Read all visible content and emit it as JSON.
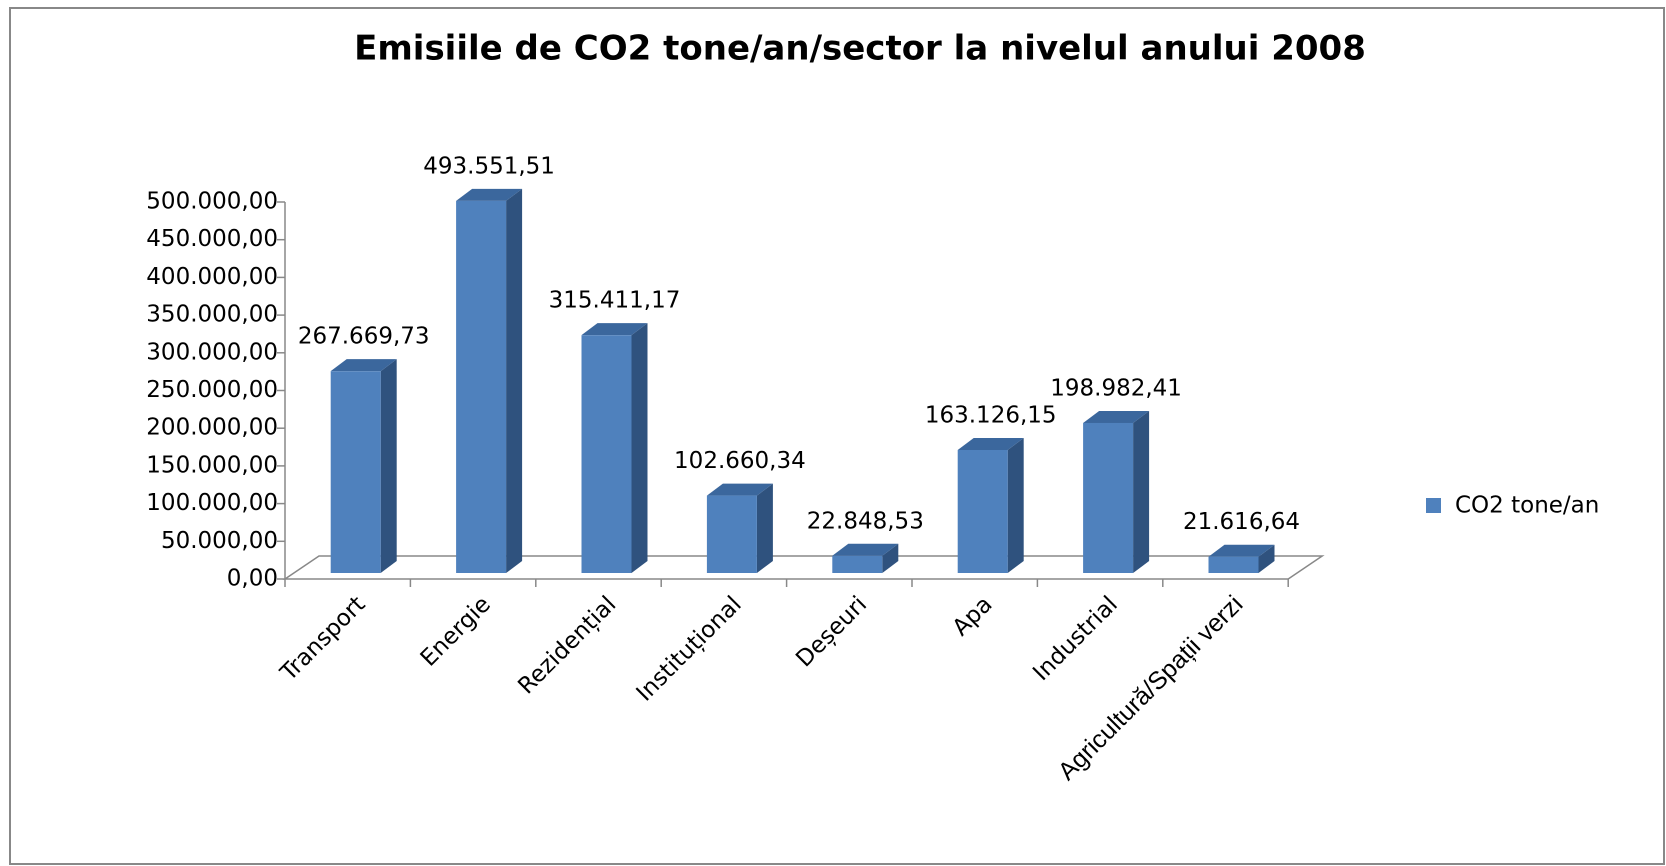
{
  "chart_data": {
    "type": "bar3d",
    "title": "Emisiile de CO2 tone/an/sector la nivelul anului 2008",
    "categories": [
      "Transport",
      "Energie",
      "Rezidențial",
      "Instituțional",
      "Deșeuri",
      "Apa",
      "Industrial",
      "Agricultură/Spații verzi"
    ],
    "series": [
      {
        "name": "CO2 tone/an",
        "color": "#4f81bd",
        "values": [
          267669.73,
          493551.51,
          315411.17,
          102660.34,
          22848.53,
          163126.15,
          198982.41,
          21616.64
        ],
        "value_labels": [
          "267.669,73",
          "493.551,51",
          "315.411,17",
          "102.660,34",
          "22.848,53",
          "163.126,15",
          "198.982,41",
          "21.616,64"
        ]
      }
    ],
    "ylim": [
      0,
      500000
    ],
    "yticks": [
      {
        "value": 0,
        "label": "0,00"
      },
      {
        "value": 50000,
        "label": "50.000,00"
      },
      {
        "value": 100000,
        "label": "100.000,00"
      },
      {
        "value": 150000,
        "label": "150.000,00"
      },
      {
        "value": 200000,
        "label": "200.000,00"
      },
      {
        "value": 250000,
        "label": "250.000,00"
      },
      {
        "value": 300000,
        "label": "300.000,00"
      },
      {
        "value": 350000,
        "label": "350.000,00"
      },
      {
        "value": 400000,
        "label": "400.000,00"
      },
      {
        "value": 450000,
        "label": "450.000,00"
      },
      {
        "value": 500000,
        "label": "500.000,00"
      }
    ],
    "grid": false,
    "legend": "right"
  }
}
